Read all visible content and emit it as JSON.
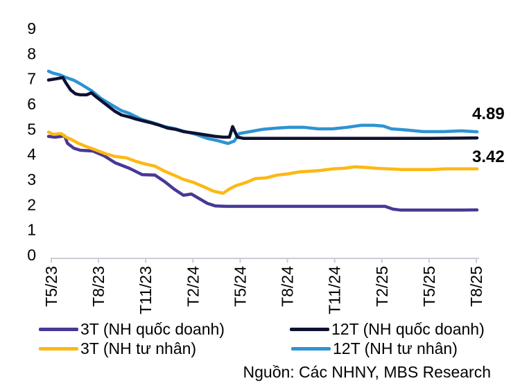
{
  "chart_data": {
    "type": "line",
    "title": "",
    "xlabel": "",
    "ylabel": "",
    "ylim": [
      0,
      9
    ],
    "y_ticks": [
      0,
      1,
      2,
      3,
      4,
      5,
      6,
      7,
      8,
      9
    ],
    "x_tick_labels": [
      "T5/23",
      "T8/23",
      "T11/23",
      "T2/24",
      "T5/24",
      "T8/24",
      "T11/24",
      "T2/25",
      "T5/25",
      "T8/25"
    ],
    "x_axis_unit": "months since T5/23 (0 = T5/23, 27 = T8/25)",
    "grid": false,
    "legend_position": "bottom",
    "axis_color": "#C9CED4",
    "text_color": "#000000",
    "series": [
      {
        "name": "3T (NH quốc doanh)",
        "color": "#483896",
        "end_label": "",
        "points": [
          [
            0,
            4.71
          ],
          [
            0.4,
            4.68
          ],
          [
            0.8,
            4.71
          ],
          [
            1.0,
            4.74
          ],
          [
            1.2,
            4.43
          ],
          [
            1.6,
            4.24
          ],
          [
            2.0,
            4.16
          ],
          [
            2.8,
            4.13
          ],
          [
            3.5,
            3.94
          ],
          [
            4.2,
            3.66
          ],
          [
            5.1,
            3.44
          ],
          [
            5.9,
            3.19
          ],
          [
            6.7,
            3.17
          ],
          [
            7.3,
            2.92
          ],
          [
            7.9,
            2.62
          ],
          [
            8.5,
            2.37
          ],
          [
            9.0,
            2.42
          ],
          [
            9.6,
            2.2
          ],
          [
            10.0,
            2.05
          ],
          [
            10.5,
            1.95
          ],
          [
            11.2,
            1.93
          ],
          [
            13,
            1.93
          ],
          [
            15,
            1.93
          ],
          [
            17,
            1.93
          ],
          [
            19,
            1.93
          ],
          [
            21.2,
            1.93
          ],
          [
            21.7,
            1.82
          ],
          [
            22.2,
            1.78
          ],
          [
            24,
            1.78
          ],
          [
            26,
            1.78
          ],
          [
            27,
            1.79
          ]
        ]
      },
      {
        "name": "3T (NH tư nhân)",
        "color": "#FDB813",
        "end_label": "3.42",
        "points": [
          [
            0,
            4.88
          ],
          [
            0.3,
            4.79
          ],
          [
            0.8,
            4.82
          ],
          [
            1.1,
            4.68
          ],
          [
            1.4,
            4.6
          ],
          [
            1.9,
            4.43
          ],
          [
            2.4,
            4.3
          ],
          [
            2.9,
            4.19
          ],
          [
            3.6,
            4.02
          ],
          [
            4.2,
            3.91
          ],
          [
            4.9,
            3.86
          ],
          [
            5.5,
            3.72
          ],
          [
            6.1,
            3.61
          ],
          [
            6.7,
            3.53
          ],
          [
            7.3,
            3.33
          ],
          [
            7.9,
            3.17
          ],
          [
            8.5,
            3.0
          ],
          [
            9.1,
            2.89
          ],
          [
            9.7,
            2.73
          ],
          [
            10.4,
            2.53
          ],
          [
            11.0,
            2.45
          ],
          [
            11.4,
            2.62
          ],
          [
            11.8,
            2.75
          ],
          [
            12.5,
            2.89
          ],
          [
            13.0,
            3.03
          ],
          [
            13.7,
            3.06
          ],
          [
            14.4,
            3.17
          ],
          [
            15.1,
            3.22
          ],
          [
            15.8,
            3.3
          ],
          [
            16.6,
            3.33
          ],
          [
            17.2,
            3.36
          ],
          [
            17.9,
            3.42
          ],
          [
            18.6,
            3.44
          ],
          [
            19.3,
            3.5
          ],
          [
            20.1,
            3.47
          ],
          [
            20.7,
            3.44
          ],
          [
            21.4,
            3.42
          ],
          [
            22.3,
            3.39
          ],
          [
            23.2,
            3.39
          ],
          [
            24.1,
            3.39
          ],
          [
            25.0,
            3.42
          ],
          [
            26.0,
            3.42
          ],
          [
            27,
            3.42
          ]
        ]
      },
      {
        "name": "12T (NH quốc doanh)",
        "color": "#0D1232",
        "end_label": "",
        "points": [
          [
            0,
            6.95
          ],
          [
            0.5,
            7.0
          ],
          [
            0.9,
            7.05
          ],
          [
            1.1,
            6.83
          ],
          [
            1.4,
            6.55
          ],
          [
            1.7,
            6.4
          ],
          [
            2.0,
            6.36
          ],
          [
            2.4,
            6.36
          ],
          [
            2.7,
            6.44
          ],
          [
            3.0,
            6.28
          ],
          [
            3.4,
            6.09
          ],
          [
            3.8,
            5.89
          ],
          [
            4.2,
            5.7
          ],
          [
            4.6,
            5.56
          ],
          [
            5.1,
            5.48
          ],
          [
            5.5,
            5.4
          ],
          [
            6.0,
            5.32
          ],
          [
            6.4,
            5.26
          ],
          [
            7.0,
            5.15
          ],
          [
            7.5,
            5.04
          ],
          [
            8.0,
            4.99
          ],
          [
            8.5,
            4.9
          ],
          [
            9.1,
            4.85
          ],
          [
            9.7,
            4.79
          ],
          [
            10.5,
            4.71
          ],
          [
            11.0,
            4.68
          ],
          [
            11.4,
            4.68
          ],
          [
            11.6,
            5.1
          ],
          [
            11.9,
            4.68
          ],
          [
            12.3,
            4.63
          ],
          [
            14,
            4.63
          ],
          [
            16,
            4.63
          ],
          [
            18,
            4.63
          ],
          [
            20,
            4.63
          ],
          [
            22,
            4.63
          ],
          [
            24,
            4.63
          ],
          [
            26,
            4.64
          ],
          [
            27,
            4.65
          ]
        ]
      },
      {
        "name": "12T (NH tư nhân)",
        "color": "#2E93D3",
        "end_label": "4.89",
        "points": [
          [
            0,
            7.3
          ],
          [
            0.3,
            7.22
          ],
          [
            0.7,
            7.16
          ],
          [
            1.1,
            7.05
          ],
          [
            1.6,
            6.94
          ],
          [
            2.0,
            6.8
          ],
          [
            2.7,
            6.53
          ],
          [
            3.3,
            6.22
          ],
          [
            4.0,
            5.95
          ],
          [
            4.6,
            5.73
          ],
          [
            5.1,
            5.62
          ],
          [
            5.8,
            5.4
          ],
          [
            6.2,
            5.32
          ],
          [
            6.7,
            5.23
          ],
          [
            7.3,
            5.1
          ],
          [
            8.0,
            5.01
          ],
          [
            8.6,
            4.9
          ],
          [
            9.3,
            4.79
          ],
          [
            10.0,
            4.63
          ],
          [
            10.6,
            4.55
          ],
          [
            11.3,
            4.43
          ],
          [
            11.7,
            4.52
          ],
          [
            12.0,
            4.82
          ],
          [
            12.7,
            4.9
          ],
          [
            13.5,
            4.99
          ],
          [
            14.4,
            5.04
          ],
          [
            15.2,
            5.07
          ],
          [
            16.1,
            5.07
          ],
          [
            17.0,
            5.01
          ],
          [
            17.9,
            5.01
          ],
          [
            18.8,
            5.07
          ],
          [
            19.7,
            5.15
          ],
          [
            20.5,
            5.15
          ],
          [
            21.1,
            5.12
          ],
          [
            21.6,
            5.01
          ],
          [
            22.6,
            4.96
          ],
          [
            23.6,
            4.9
          ],
          [
            24.9,
            4.9
          ],
          [
            26.0,
            4.93
          ],
          [
            27,
            4.89
          ]
        ]
      }
    ],
    "annotations": [
      {
        "text": "4.89",
        "value_y": 5.61
      },
      {
        "text": "3.42",
        "value_y": 3.91
      }
    ]
  },
  "legend": {
    "items": [
      {
        "series_index": 0
      },
      {
        "series_index": 1
      },
      {
        "series_index": 2
      },
      {
        "series_index": 3
      }
    ]
  },
  "source": "Nguồn: Các NHNY, MBS Research"
}
